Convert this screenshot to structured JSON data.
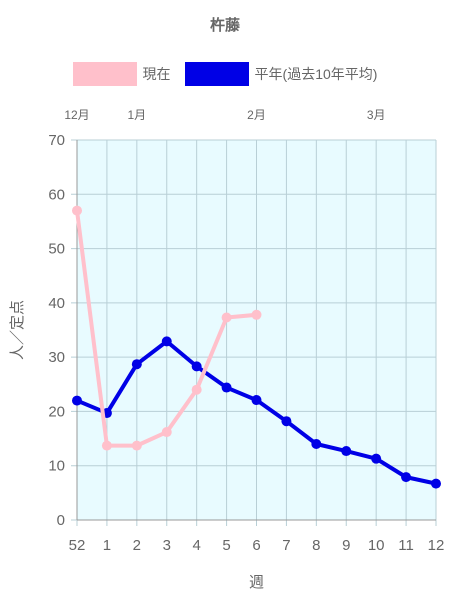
{
  "chart_data": {
    "type": "line",
    "title": "杵藤",
    "xlabel": "週",
    "ylabel": "人／定点",
    "x_categories": [
      "52",
      "1",
      "2",
      "3",
      "4",
      "5",
      "6",
      "7",
      "8",
      "9",
      "10",
      "11",
      "12"
    ],
    "month_labels": [
      {
        "label": "12月",
        "at": "52"
      },
      {
        "label": "1月",
        "at": "2"
      },
      {
        "label": "2月",
        "at": "6"
      },
      {
        "label": "3月",
        "at": "10"
      }
    ],
    "ylim": [
      0,
      70
    ],
    "yticks": [
      0,
      10,
      20,
      30,
      40,
      50,
      60,
      70
    ],
    "grid": true,
    "legend_position": "top",
    "plot_background": "#e8fbff",
    "series": [
      {
        "name": "現在",
        "color": "#ffc0cb",
        "values": [
          57,
          13.7,
          13.7,
          16.2,
          24,
          37.3,
          37.8,
          null,
          null,
          null,
          null,
          null,
          null
        ]
      },
      {
        "name": "平年(過去10年平均)",
        "color": "#0000e6",
        "values": [
          22,
          19.7,
          28.7,
          32.9,
          28.3,
          24.4,
          22.1,
          18.2,
          14,
          12.7,
          11.3,
          7.9,
          6.7
        ]
      }
    ]
  }
}
